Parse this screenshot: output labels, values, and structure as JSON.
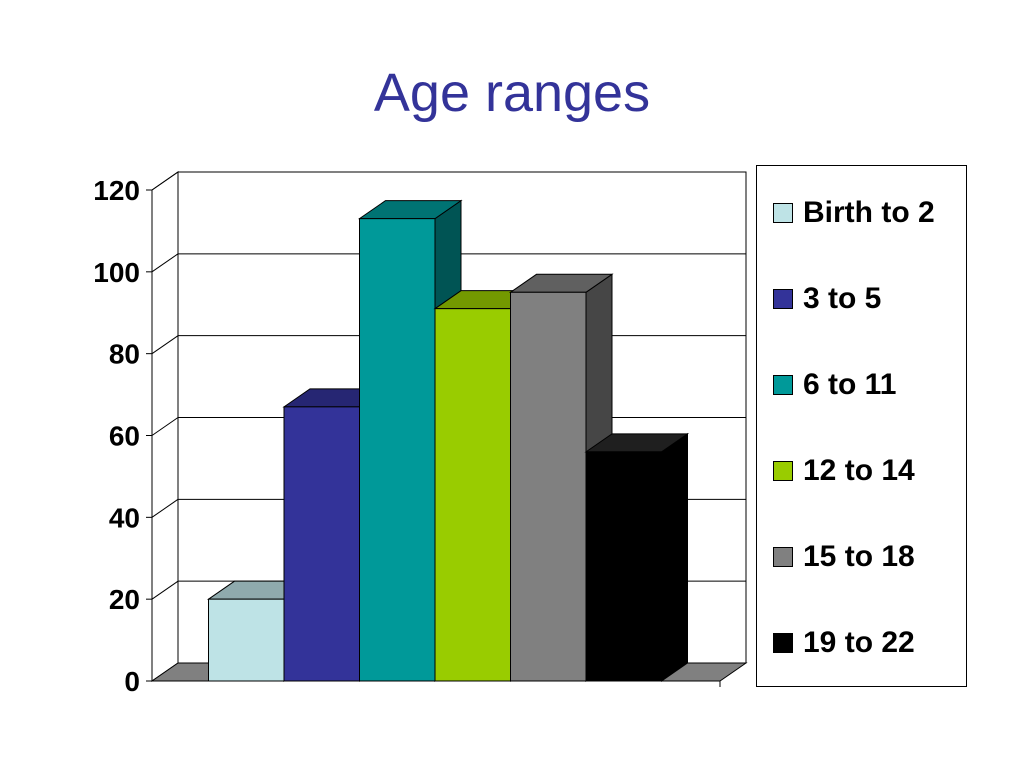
{
  "slide": {
    "title": "Age ranges"
  },
  "chart_data": {
    "type": "bar",
    "title": "Age ranges",
    "xlabel": "",
    "ylabel": "",
    "ylim": [
      0,
      120
    ],
    "yticks": [
      "0",
      "20",
      "40",
      "60",
      "80",
      "100",
      "120"
    ],
    "grid": true,
    "three_d": true,
    "legend_position": "right",
    "series": [
      {
        "name": "Birth to 2",
        "values": [
          20
        ],
        "color": "#BEE3E6"
      },
      {
        "name": "3 to 5",
        "values": [
          67
        ],
        "color": "#333399"
      },
      {
        "name": "6 to 11",
        "values": [
          113
        ],
        "color": "#009999"
      },
      {
        "name": "12 to 14",
        "values": [
          91
        ],
        "color": "#99CC00"
      },
      {
        "name": "15 to 18",
        "values": [
          95
        ],
        "color": "#808080"
      },
      {
        "name": "19 to 22",
        "values": [
          56
        ],
        "color": "#000000"
      }
    ]
  }
}
